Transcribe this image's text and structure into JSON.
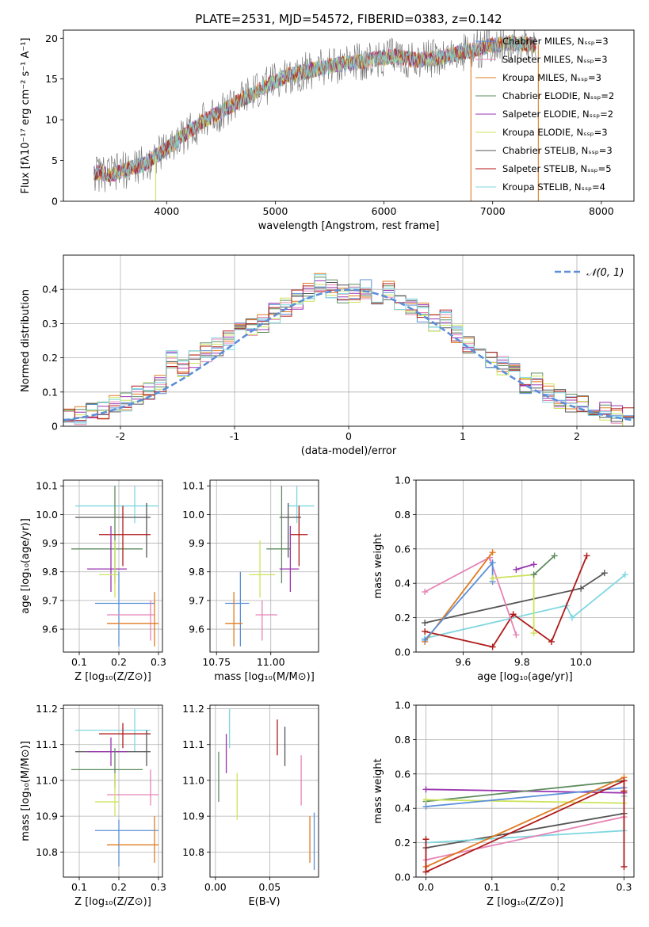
{
  "figure": {
    "title": "PLATE=2531, MJD=54572, FIBERID=0383, z=0.142"
  },
  "colors": {
    "grid": "#b0b0b0",
    "normal_curve": "#5b8fd8"
  },
  "chart_data": [
    {
      "id": "spectrum",
      "type": "line",
      "xlabel": "wavelength [Angstrom, rest frame]",
      "ylabel": "Flux [fλ10⁻¹⁷ erg cm⁻² s⁻¹ A⁻¹]",
      "xlim": [
        3050,
        8300
      ],
      "ylim": [
        0,
        21
      ],
      "xticks": [
        4000,
        5000,
        6000,
        7000,
        8000
      ],
      "yticks": [
        0,
        5,
        10,
        15,
        20
      ],
      "grid": false,
      "legend_position": "upper right",
      "legend": [
        {
          "label": "Chabrier MILES, Nₛₛₚ=3",
          "color": "#5b8fd8"
        },
        {
          "label": "Salpeter MILES, Nₛₛₚ=3",
          "color": "#e683b5"
        },
        {
          "label": "Kroupa MILES, Nₛₛₚ=3",
          "color": "#e07b22"
        },
        {
          "label": "Chabrier ELODIE, Nₛₛₚ=2",
          "color": "#5e8c5e"
        },
        {
          "label": "Salpeter ELODIE, Nₛₛₚ=2",
          "color": "#9b34b0"
        },
        {
          "label": "Kroupa ELODIE, Nₛₛₚ=3",
          "color": "#cde35c"
        },
        {
          "label": "Chabrier STELIB, Nₛₛₚ=3",
          "color": "#555555"
        },
        {
          "label": "Salpeter STELIB, Nₛₛₚ=5",
          "color": "#b01a1a"
        },
        {
          "label": "Kroupa STELIB, Nₛₛₚ=4",
          "color": "#7fd7e0"
        }
      ],
      "continuum": {
        "x": [
          3330,
          3500,
          3650,
          3800,
          3950,
          4100,
          4300,
          4500,
          4700,
          4900,
          5100,
          5300,
          5500,
          5700,
          5900,
          6100,
          6300,
          6500,
          6700,
          6900,
          7000,
          7200,
          7400
        ],
        "y": [
          3.5,
          3.3,
          4.0,
          4.6,
          6.0,
          7.5,
          9.5,
          11.0,
          12.5,
          14.0,
          15.4,
          16.0,
          16.6,
          17.0,
          17.4,
          17.8,
          17.3,
          17.6,
          18.2,
          18.8,
          19.2,
          19.4,
          19.2
        ]
      },
      "spikes": [
        {
          "x": 3900,
          "y": 0,
          "color": "#cde35c"
        },
        {
          "x": 6800,
          "y": 0,
          "color": "#e07b22"
        },
        {
          "x": 7420,
          "y": 0,
          "color": "#e07b22"
        }
      ]
    },
    {
      "id": "residuals",
      "type": "line",
      "xlabel": "(data-model)/error",
      "ylabel": "Normed distribution",
      "xlim": [
        -2.5,
        2.5
      ],
      "ylim": [
        0,
        0.5
      ],
      "xticks": [
        -2,
        -1,
        0,
        1,
        2
      ],
      "yticks": [
        0.0,
        0.1,
        0.2,
        0.3,
        0.4
      ],
      "grid": true,
      "legend_position": "upper right",
      "curve_label": "𝒩(0, 1)",
      "normal_mean": 0,
      "normal_sigma": 1,
      "bin_edges": [
        -2.5,
        -2.4,
        -2.3,
        -2.2,
        -2.1,
        -2.0,
        -1.9,
        -1.8,
        -1.7,
        -1.6,
        -1.5,
        -1.4,
        -1.3,
        -1.2,
        -1.1,
        -1.0,
        -0.9,
        -0.8,
        -0.7,
        -0.6,
        -0.5,
        -0.4,
        -0.3,
        -0.2,
        -0.1,
        0.0,
        0.1,
        0.2,
        0.3,
        0.4,
        0.5,
        0.6,
        0.7,
        0.8,
        0.9,
        1.0,
        1.1,
        1.2,
        1.3,
        1.4,
        1.5,
        1.6,
        1.7,
        1.8,
        1.9,
        2.0,
        2.1,
        2.2,
        2.3,
        2.4,
        2.5
      ],
      "base_values": [
        0.028,
        0.035,
        0.04,
        0.05,
        0.06,
        0.072,
        0.09,
        0.1,
        0.12,
        0.2,
        0.17,
        0.2,
        0.215,
        0.23,
        0.25,
        0.28,
        0.29,
        0.3,
        0.33,
        0.35,
        0.37,
        0.39,
        0.42,
        0.4,
        0.39,
        0.39,
        0.4,
        0.38,
        0.4,
        0.36,
        0.35,
        0.33,
        0.3,
        0.31,
        0.27,
        0.24,
        0.22,
        0.2,
        0.18,
        0.16,
        0.12,
        0.13,
        0.1,
        0.08,
        0.07,
        0.06,
        0.05,
        0.045,
        0.035,
        0.025
      ]
    },
    {
      "id": "age-vs-Z",
      "type": "scatter",
      "xlabel": "Z [log₁₀(Z/Z⊙)]",
      "ylabel": "age  [log₁₀(age/yr)]",
      "xlim": [
        0.06,
        0.31
      ],
      "ylim": [
        9.52,
        10.12
      ],
      "xticks": [
        0.1,
        0.2,
        0.3
      ],
      "xtick_labels": [
        "0.1",
        "0.2",
        "0.3"
      ],
      "yticks": [
        9.6,
        9.7,
        9.8,
        9.9,
        10.0,
        10.1
      ],
      "ytick_labels": [
        "9.6",
        "9.7",
        "9.8",
        "9.9",
        "10.0",
        "10.1"
      ],
      "grid": true,
      "points": [
        {
          "color": "#7fd7e0",
          "x": 0.24,
          "xerr": [
            0.09,
            0.3
          ],
          "y": 10.03,
          "yerr": [
            9.97,
            10.1
          ]
        },
        {
          "color": "#555555",
          "x": 0.27,
          "xerr": [
            0.09,
            0.28
          ],
          "y": 9.99,
          "yerr": [
            9.85,
            10.04
          ]
        },
        {
          "color": "#5e8c5e",
          "x": 0.19,
          "xerr": [
            0.08,
            0.26
          ],
          "y": 9.88,
          "yerr": [
            9.76,
            10.1
          ]
        },
        {
          "color": "#b01a1a",
          "x": 0.21,
          "xerr": [
            0.15,
            0.28
          ],
          "y": 9.93,
          "yerr": [
            9.82,
            10.03
          ]
        },
        {
          "color": "#9b34b0",
          "x": 0.18,
          "xerr": [
            0.12,
            0.22
          ],
          "y": 9.81,
          "yerr": [
            9.73,
            9.96
          ]
        },
        {
          "color": "#cde35c",
          "x": 0.19,
          "xerr": [
            0.15,
            0.2
          ],
          "y": 9.79,
          "yerr": [
            9.71,
            9.91
          ]
        },
        {
          "color": "#5b8fd8",
          "x": 0.2,
          "xerr": [
            0.14,
            0.29
          ],
          "y": 9.69,
          "yerr": [
            9.54,
            9.8
          ]
        },
        {
          "color": "#e683b5",
          "x": 0.28,
          "xerr": [
            0.17,
            0.29
          ],
          "y": 9.65,
          "yerr": [
            9.56,
            9.7
          ]
        },
        {
          "color": "#e07b22",
          "x": 0.29,
          "xerr": [
            0.17,
            0.3
          ],
          "y": 9.62,
          "yerr": [
            9.54,
            9.73
          ]
        }
      ]
    },
    {
      "id": "age-vs-mass",
      "type": "scatter",
      "xlabel": "mass [log₁₀(M/M⊙)]",
      "xlim": [
        10.72,
        11.22
      ],
      "ylim": [
        9.52,
        10.12
      ],
      "xticks": [
        10.75,
        11.0
      ],
      "xtick_labels": [
        "10.75",
        "11.00"
      ],
      "yticks": [
        9.6,
        9.7,
        9.8,
        9.9,
        10.0,
        10.1
      ],
      "ytick_labels": [
        "9.6",
        "9.7",
        "9.8",
        "9.9",
        "10.0",
        "10.1"
      ],
      "grid": true,
      "points": [
        {
          "color": "#7fd7e0",
          "x": 11.12,
          "xerr": [
            11.08,
            11.2
          ],
          "y": 10.03,
          "yerr": [
            9.97,
            10.1
          ]
        },
        {
          "color": "#555555",
          "x": 11.08,
          "xerr": [
            11.04,
            11.14
          ],
          "y": 9.99,
          "yerr": [
            9.85,
            10.04
          ]
        },
        {
          "color": "#5e8c5e",
          "x": 11.05,
          "xerr": [
            10.98,
            11.09
          ],
          "y": 9.88,
          "yerr": [
            9.76,
            10.1
          ]
        },
        {
          "color": "#b01a1a",
          "x": 11.13,
          "xerr": [
            11.09,
            11.17
          ],
          "y": 9.93,
          "yerr": [
            9.82,
            10.03
          ]
        },
        {
          "color": "#9b34b0",
          "x": 11.09,
          "xerr": [
            11.04,
            11.13
          ],
          "y": 9.81,
          "yerr": [
            9.73,
            9.96
          ]
        },
        {
          "color": "#cde35c",
          "x": 10.95,
          "xerr": [
            10.9,
            11.02
          ],
          "y": 9.79,
          "yerr": [
            9.71,
            9.91
          ]
        },
        {
          "color": "#5b8fd8",
          "x": 10.86,
          "xerr": [
            10.79,
            10.9
          ],
          "y": 9.69,
          "yerr": [
            9.54,
            9.8
          ]
        },
        {
          "color": "#e683b5",
          "x": 10.96,
          "xerr": [
            10.93,
            11.03
          ],
          "y": 9.65,
          "yerr": [
            9.56,
            9.7
          ]
        },
        {
          "color": "#e07b22",
          "x": 10.83,
          "xerr": [
            10.79,
            10.87
          ],
          "y": 9.62,
          "yerr": [
            9.54,
            9.73
          ]
        }
      ]
    },
    {
      "id": "weight-vs-age",
      "type": "line",
      "xlabel": "age  [log₁₀(age/yr)]",
      "ylabel": "mass weight",
      "xlim": [
        9.44,
        10.18
      ],
      "ylim": [
        0,
        1
      ],
      "xticks": [
        9.6,
        9.8,
        10.0
      ],
      "xtick_labels": [
        "9.6",
        "9.8",
        "10.0"
      ],
      "yticks": [
        0.0,
        0.2,
        0.4,
        0.6,
        0.8,
        1.0
      ],
      "ytick_labels": [
        "0.0",
        "0.2",
        "0.4",
        "0.6",
        "0.8",
        "1.0"
      ],
      "grid": true,
      "series": [
        {
          "color": "#555555",
          "x": [
            9.47,
            10.0,
            10.08
          ],
          "y": [
            0.17,
            0.37,
            0.46
          ]
        },
        {
          "color": "#7fd7e0",
          "x": [
            9.47,
            9.95,
            9.97,
            10.15
          ],
          "y": [
            0.08,
            0.27,
            0.2,
            0.45
          ]
        },
        {
          "color": "#b01a1a",
          "x": [
            9.47,
            9.7,
            9.77,
            9.9,
            10.02
          ],
          "y": [
            0.12,
            0.03,
            0.22,
            0.06,
            0.56
          ]
        },
        {
          "color": "#e683b5",
          "x": [
            9.47,
            9.69,
            9.78
          ],
          "y": [
            0.35,
            0.55,
            0.1
          ]
        },
        {
          "color": "#e07b22",
          "x": [
            9.47,
            9.7
          ],
          "y": [
            0.06,
            0.58
          ]
        },
        {
          "color": "#5b8fd8",
          "x": [
            9.47,
            9.7,
            9.7
          ],
          "y": [
            0.07,
            0.52,
            0.41
          ]
        },
        {
          "color": "#cde35c",
          "x": [
            9.7,
            9.84,
            9.84
          ],
          "y": [
            0.43,
            0.45,
            0.11
          ]
        },
        {
          "color": "#9b34b0",
          "x": [
            9.78,
            9.84
          ],
          "y": [
            0.48,
            0.51
          ]
        },
        {
          "color": "#5e8c5e",
          "x": [
            9.84,
            9.91
          ],
          "y": [
            0.45,
            0.56
          ]
        }
      ]
    },
    {
      "id": "mass-vs-Z",
      "type": "scatter",
      "xlabel": "Z [log₁₀(Z/Z⊙)]",
      "ylabel": "mass [log₁₀(M/M⊙)]",
      "xlim": [
        0.06,
        0.31
      ],
      "ylim": [
        10.73,
        11.21
      ],
      "xticks": [
        0.1,
        0.2,
        0.3
      ],
      "xtick_labels": [
        "0.1",
        "0.2",
        "0.3"
      ],
      "yticks": [
        10.8,
        10.9,
        11.0,
        11.1,
        11.2
      ],
      "ytick_labels": [
        "10.8",
        "10.9",
        "11.0",
        "11.1",
        "11.2"
      ],
      "grid": true,
      "points": [
        {
          "color": "#7fd7e0",
          "x": 0.24,
          "xerr": [
            0.09,
            0.28
          ],
          "y": 11.14,
          "yerr": [
            11.08,
            11.2
          ]
        },
        {
          "color": "#b01a1a",
          "x": 0.21,
          "xerr": [
            0.15,
            0.28
          ],
          "y": 11.13,
          "yerr": [
            11.09,
            11.16
          ]
        },
        {
          "color": "#555555",
          "x": 0.27,
          "xerr": [
            0.09,
            0.28
          ],
          "y": 11.08,
          "yerr": [
            11.04,
            11.14
          ]
        },
        {
          "color": "#9b34b0",
          "x": 0.18,
          "xerr": [
            0.12,
            0.22
          ],
          "y": 11.08,
          "yerr": [
            11.04,
            11.12
          ]
        },
        {
          "color": "#5e8c5e",
          "x": 0.19,
          "xerr": [
            0.08,
            0.26
          ],
          "y": 11.03,
          "yerr": [
            10.98,
            11.09
          ]
        },
        {
          "color": "#e683b5",
          "x": 0.28,
          "xerr": [
            0.17,
            0.3
          ],
          "y": 10.96,
          "yerr": [
            10.93,
            11.03
          ]
        },
        {
          "color": "#cde35c",
          "x": 0.19,
          "xerr": [
            0.14,
            0.2
          ],
          "y": 10.94,
          "yerr": [
            10.9,
            11.02
          ]
        },
        {
          "color": "#5b8fd8",
          "x": 0.2,
          "xerr": [
            0.14,
            0.3
          ],
          "y": 10.86,
          "yerr": [
            10.76,
            10.89
          ]
        },
        {
          "color": "#e07b22",
          "x": 0.29,
          "xerr": [
            0.17,
            0.3
          ],
          "y": 10.82,
          "yerr": [
            10.77,
            10.9
          ]
        }
      ]
    },
    {
      "id": "mass-vs-ebv",
      "type": "scatter",
      "xlabel": "E(B-V)",
      "xlim": [
        -0.005,
        0.095
      ],
      "ylim": [
        10.73,
        11.21
      ],
      "xticks": [
        0.0,
        0.05
      ],
      "xtick_labels": [
        "0.00",
        "0.05"
      ],
      "yticks": [
        10.8,
        10.9,
        11.0,
        11.1,
        11.2
      ],
      "ytick_labels": [
        "10.8",
        "10.9",
        "11.0",
        "11.1",
        "11.2"
      ],
      "grid": true,
      "points": [
        {
          "color": "#5e8c5e",
          "x": 0.003,
          "y": 11.03,
          "yerr": [
            10.94,
            11.08
          ]
        },
        {
          "color": "#9b34b0",
          "x": 0.01,
          "y": 11.08,
          "yerr": [
            11.02,
            11.13
          ]
        },
        {
          "color": "#7fd7e0",
          "x": 0.013,
          "y": 11.14,
          "yerr": [
            11.09,
            11.2
          ]
        },
        {
          "color": "#cde35c",
          "x": 0.02,
          "y": 10.96,
          "yerr": [
            10.89,
            11.02
          ]
        },
        {
          "color": "#b01a1a",
          "x": 0.057,
          "y": 11.12,
          "yerr": [
            11.07,
            11.17
          ]
        },
        {
          "color": "#555555",
          "x": 0.064,
          "y": 11.1,
          "yerr": [
            11.04,
            11.15
          ]
        },
        {
          "color": "#e683b5",
          "x": 0.079,
          "y": 10.99,
          "yerr": [
            10.93,
            11.07
          ]
        },
        {
          "color": "#e07b22",
          "x": 0.087,
          "y": 10.84,
          "yerr": [
            10.77,
            10.9
          ]
        },
        {
          "color": "#5b8fd8",
          "x": 0.091,
          "y": 10.83,
          "yerr": [
            10.75,
            10.91
          ]
        }
      ]
    },
    {
      "id": "weight-vs-Z",
      "type": "line",
      "xlabel": "Z [log₁₀(Z/Z⊙)]",
      "ylabel": "mass weight",
      "xlim": [
        -0.015,
        0.315
      ],
      "ylim": [
        0,
        1
      ],
      "xticks": [
        0.0,
        0.1,
        0.2,
        0.3
      ],
      "xtick_labels": [
        "0.0",
        "0.1",
        "0.2",
        "0.3"
      ],
      "yticks": [
        0.0,
        0.2,
        0.4,
        0.6,
        0.8,
        1.0
      ],
      "ytick_labels": [
        "0.0",
        "0.2",
        "0.4",
        "0.6",
        "0.8",
        "1.0"
      ],
      "grid": true,
      "series": [
        {
          "color": "#9b34b0",
          "x": [
            0.0,
            0.3
          ],
          "y": [
            0.51,
            0.49
          ]
        },
        {
          "color": "#5e8c5e",
          "x": [
            0.0,
            0.3
          ],
          "y": [
            0.44,
            0.56
          ]
        },
        {
          "color": "#cde35c",
          "x": [
            0.0,
            0.3
          ],
          "y": [
            0.45,
            0.43
          ]
        },
        {
          "color": "#5b8fd8",
          "x": [
            0.0,
            0.3
          ],
          "y": [
            0.41,
            0.52
          ]
        },
        {
          "color": "#555555",
          "x": [
            0.0,
            0.3
          ],
          "y": [
            0.17,
            0.37
          ]
        },
        {
          "color": "#7fd7e0",
          "x": [
            0.0,
            0.3,
            0.3
          ],
          "y": [
            0.2,
            0.27,
            0.47
          ]
        },
        {
          "color": "#e683b5",
          "x": [
            0.0,
            0.3
          ],
          "y": [
            0.1,
            0.35
          ]
        },
        {
          "color": "#e07b22",
          "x": [
            0.0,
            0.3
          ],
          "y": [
            0.06,
            0.58
          ]
        },
        {
          "color": "#b01a1a",
          "x": [
            0.0,
            0.0,
            0.3,
            0.3,
            0.3
          ],
          "y": [
            0.22,
            0.03,
            0.56,
            0.5,
            0.06
          ]
        }
      ]
    }
  ]
}
